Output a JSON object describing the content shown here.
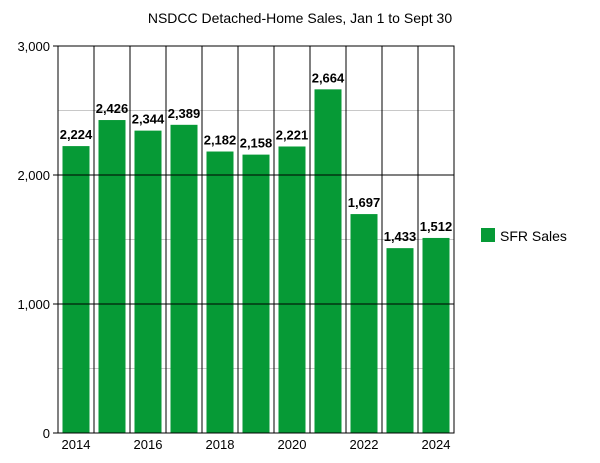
{
  "chart_data": {
    "type": "bar",
    "title": "NSDCC Detached-Home Sales, Jan 1 to Sept 30",
    "xlabel": "",
    "ylabel": "",
    "categories": [
      "2014",
      "2015",
      "2016",
      "2017",
      "2018",
      "2019",
      "2020",
      "2021",
      "2022",
      "2023",
      "2024"
    ],
    "x_tick_labels": [
      "2014",
      "",
      "2016",
      "",
      "2018",
      "",
      "2020",
      "",
      "2022",
      "",
      "2024"
    ],
    "series": [
      {
        "name": "SFR Sales",
        "color": "#069A36",
        "values": [
          2224,
          2426,
          2344,
          2389,
          2182,
          2158,
          2221,
          2664,
          1697,
          1433,
          1512
        ],
        "data_labels": [
          "2,224",
          "2,426",
          "2,344",
          "2,389",
          "2,182",
          "2,158",
          "2,221",
          "2,664",
          "1,697",
          "1,433",
          "1,512"
        ]
      }
    ],
    "ylim": [
      0,
      3000
    ],
    "y_ticks": [
      0,
      1000,
      2000,
      3000
    ],
    "y_tick_labels": [
      "0",
      "1,000",
      "2,000",
      "3,000"
    ],
    "minor_gridlines": [
      500,
      1500,
      2500
    ],
    "grid": true,
    "legend_position": "right"
  }
}
